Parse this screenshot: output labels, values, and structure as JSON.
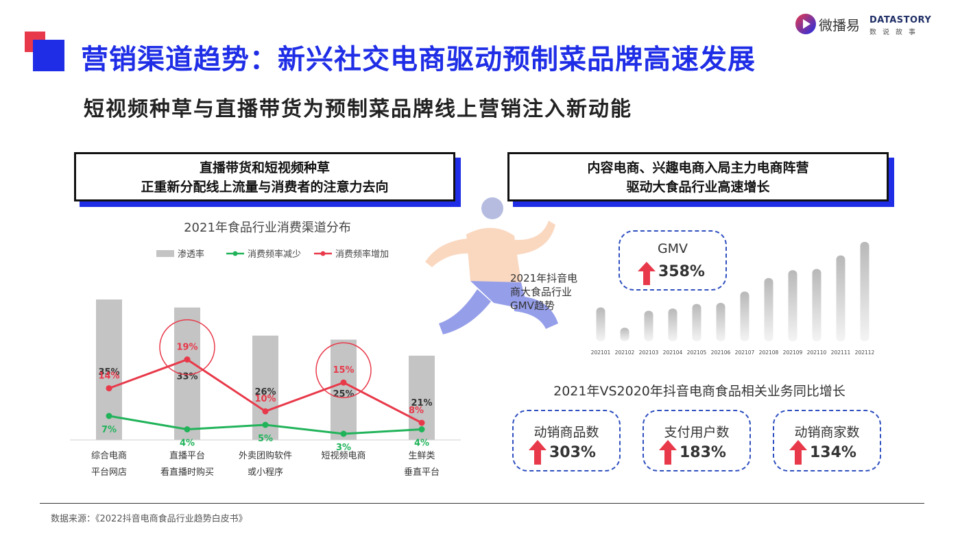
{
  "title": "营销渠道趋势：新兴社交电商驱动预制菜品牌高速发展",
  "subtitle": "短视频种草与直播带货为预制菜品牌线上营销注入新动能",
  "logos": {
    "weibo_yi": "微播易",
    "datastory_en": "DATASTORY",
    "datastory_cn": "数说故事"
  },
  "left_callout": {
    "line1": "直播带货和短视频种草",
    "line2": "正重新分配线上流量与消费者的注意力去向"
  },
  "right_callout": {
    "line1": "内容电商、兴趣电商入局主力电商阵营",
    "line2": "驱动大食品行业高速增长"
  },
  "gmv_label": "2021年抖音电商大食品行业GMV趋势",
  "gmv_box": {
    "label": "GMV",
    "value": "358%"
  },
  "yoy_title": "2021年VS2020年抖音电商食品相关业务同比增长",
  "kpis": [
    {
      "label": "动销商品数",
      "value": "303%"
    },
    {
      "label": "支付用户数",
      "value": "183%"
    },
    {
      "label": "动销商家数",
      "value": "134%"
    }
  ],
  "source": "数据来源：《2022抖音电商食品行业趋势白皮书》",
  "colors": {
    "blue": "#1f2ee6",
    "red": "#e8394a",
    "green": "#21b35a",
    "bar_gray": "#c4c4c4"
  },
  "icons": [
    "up-arrow-icon",
    "play-logo-icon",
    "runner-illustration"
  ],
  "chart_data": [
    {
      "type": "bar",
      "title": "2021年食品行业消费渠道分布",
      "categories": [
        [
          "综合电商",
          "平台网店"
        ],
        [
          "直播平台",
          "看直播时购买"
        ],
        [
          "外卖团购软件",
          "或小程序"
        ],
        [
          "短视频电商",
          ""
        ],
        [
          "生鲜类",
          "垂直平台"
        ]
      ],
      "legend_placement": "top",
      "series": [
        {
          "name": "渗透率",
          "type": "bar",
          "values": [
            35,
            33,
            26,
            25,
            21
          ],
          "labels": [
            "35%",
            "33%",
            "26%",
            "25%",
            "21%"
          ]
        },
        {
          "name": "消费频率减少",
          "type": "line",
          "values": [
            7,
            4,
            5,
            3,
            4
          ],
          "labels": [
            "7%",
            "4%",
            "5%",
            "3%",
            "4%"
          ]
        },
        {
          "name": "消费频率增加",
          "type": "line",
          "values": [
            14,
            19,
            10,
            15,
            8
          ],
          "labels": [
            "14%",
            "19%",
            "10%",
            "15%",
            "8%"
          ]
        }
      ],
      "highlighted_categories": [
        1,
        3
      ]
    },
    {
      "type": "bar",
      "title": "2021年抖音电商大食品行业GMV趋势",
      "categories": [
        "202101",
        "202102",
        "202103",
        "202104",
        "202105",
        "202106",
        "202107",
        "202108",
        "202109",
        "202110",
        "202111",
        "202112"
      ],
      "values": [
        30,
        12,
        27,
        29,
        33,
        34,
        44,
        56,
        63,
        64,
        76,
        88
      ],
      "grid": false
    }
  ]
}
